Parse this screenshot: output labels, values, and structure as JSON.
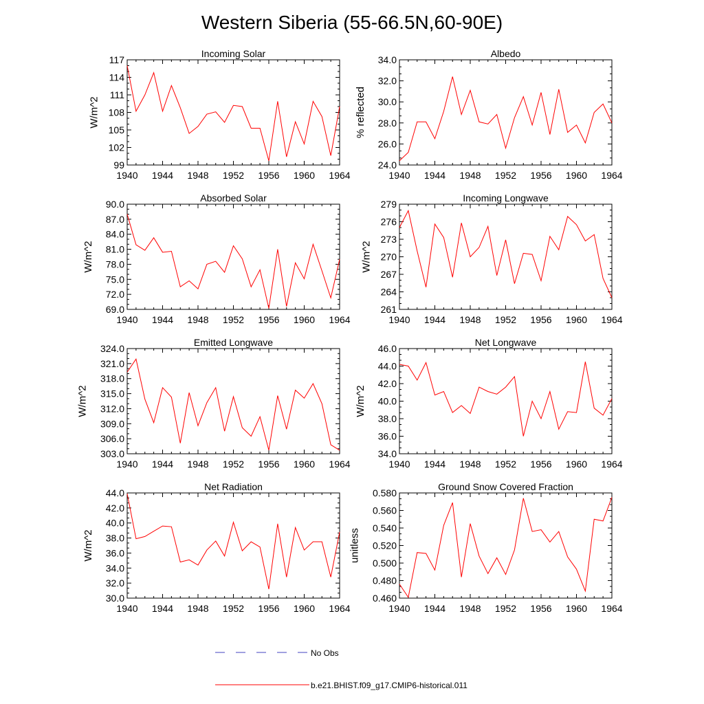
{
  "figure": {
    "title": "Western Siberia (55-66.5N,60-90E)"
  },
  "legend": [
    {
      "label": "No Obs",
      "color": "#4040c0",
      "style": "dashed"
    },
    {
      "label": "b.e21.BHIST.f09_g17.CMIP6-historical.011",
      "color": "#ff0000",
      "style": "solid"
    }
  ],
  "chart_data": [
    {
      "type": "line",
      "title": "Incoming Solar",
      "ylabel": "W/m^2",
      "xlim": [
        1940,
        1964
      ],
      "ylim": [
        99,
        117
      ],
      "xticks": [
        "1940",
        "1944",
        "1948",
        "1952",
        "1956",
        "1960",
        "1964"
      ],
      "yticks": [
        "99",
        "102",
        "105",
        "108",
        "111",
        "114",
        "117"
      ],
      "series": [
        {
          "color": "#ff0000",
          "x": [
            1940,
            1941,
            1942,
            1943,
            1944,
            1945,
            1946,
            1947,
            1948,
            1949,
            1950,
            1951,
            1952,
            1953,
            1954,
            1955,
            1956,
            1957,
            1958,
            1959,
            1960,
            1961,
            1962,
            1963,
            1964
          ],
          "y": [
            116.0,
            108.2,
            111.0,
            114.8,
            108.2,
            112.6,
            108.8,
            104.4,
            105.6,
            107.7,
            108.1,
            106.3,
            109.2,
            109.0,
            105.3,
            105.3,
            99.7,
            109.9,
            100.4,
            106.4,
            102.6,
            109.9,
            107.3,
            100.6,
            109.0
          ]
        }
      ]
    },
    {
      "type": "line",
      "title": "Albedo",
      "ylabel": "% reflected",
      "xlim": [
        1940,
        1964
      ],
      "ylim": [
        24.0,
        34.0
      ],
      "xticks": [
        "1940",
        "1944",
        "1948",
        "1952",
        "1956",
        "1960",
        "1964"
      ],
      "yticks": [
        "24.0",
        "26.0",
        "28.0",
        "30.0",
        "32.0",
        "34.0"
      ],
      "series": [
        {
          "color": "#ff0000",
          "x": [
            1940,
            1941,
            1942,
            1943,
            1944,
            1945,
            1946,
            1947,
            1948,
            1949,
            1950,
            1951,
            1952,
            1953,
            1954,
            1955,
            1956,
            1957,
            1958,
            1959,
            1960,
            1961,
            1962,
            1963,
            1964
          ],
          "y": [
            24.4,
            25.2,
            28.1,
            28.1,
            26.5,
            29.1,
            32.4,
            28.8,
            31.1,
            28.1,
            27.9,
            28.8,
            25.6,
            28.5,
            30.5,
            27.8,
            30.9,
            26.9,
            31.2,
            27.1,
            27.8,
            26.1,
            29.0,
            29.8,
            28.0
          ]
        }
      ]
    },
    {
      "type": "line",
      "title": "Absorbed Solar",
      "ylabel": "W/m^2",
      "xlim": [
        1940,
        1964
      ],
      "ylim": [
        69.0,
        90.0
      ],
      "xticks": [
        "1940",
        "1944",
        "1948",
        "1952",
        "1956",
        "1960",
        "1964"
      ],
      "yticks": [
        "69.0",
        "72.0",
        "75.0",
        "78.0",
        "81.0",
        "84.0",
        "87.0",
        "90.0"
      ],
      "series": [
        {
          "color": "#ff0000",
          "x": [
            1940,
            1941,
            1942,
            1943,
            1944,
            1945,
            1946,
            1947,
            1948,
            1949,
            1950,
            1951,
            1952,
            1953,
            1954,
            1955,
            1956,
            1957,
            1958,
            1959,
            1960,
            1961,
            1962,
            1963,
            1964
          ],
          "y": [
            88.0,
            81.9,
            80.8,
            83.3,
            80.4,
            80.6,
            73.5,
            74.7,
            73.1,
            78.0,
            78.6,
            76.4,
            81.7,
            79.1,
            73.5,
            76.9,
            69.2,
            81.0,
            69.6,
            78.3,
            75.1,
            82.0,
            76.7,
            71.3,
            79.0
          ]
        }
      ]
    },
    {
      "type": "line",
      "title": "Incoming Longwave",
      "ylabel": "W/m^2",
      "xlim": [
        1940,
        1964
      ],
      "ylim": [
        261,
        279
      ],
      "xticks": [
        "1940",
        "1944",
        "1948",
        "1952",
        "1956",
        "1960",
        "1964"
      ],
      "yticks": [
        "261",
        "264",
        "267",
        "270",
        "273",
        "276",
        "279"
      ],
      "series": [
        {
          "color": "#ff0000",
          "x": [
            1940,
            1941,
            1942,
            1943,
            1944,
            1945,
            1946,
            1947,
            1948,
            1949,
            1950,
            1951,
            1952,
            1953,
            1954,
            1955,
            1956,
            1957,
            1958,
            1959,
            1960,
            1961,
            1962,
            1963,
            1964
          ],
          "y": [
            275.0,
            277.9,
            271.0,
            264.8,
            275.6,
            273.3,
            266.5,
            275.8,
            270.0,
            271.6,
            275.2,
            266.8,
            272.9,
            265.4,
            270.6,
            270.4,
            265.9,
            273.5,
            271.2,
            276.9,
            275.5,
            272.7,
            273.8,
            266.3,
            263.0
          ]
        }
      ]
    },
    {
      "type": "line",
      "title": "Emitted Longwave",
      "ylabel": "W/m^2",
      "xlim": [
        1940,
        1964
      ],
      "ylim": [
        303.0,
        324.0
      ],
      "xticks": [
        "1940",
        "1944",
        "1948",
        "1952",
        "1956",
        "1960",
        "1964"
      ],
      "yticks": [
        "303.0",
        "306.0",
        "309.0",
        "312.0",
        "315.0",
        "318.0",
        "321.0",
        "324.0"
      ],
      "series": [
        {
          "color": "#ff0000",
          "x": [
            1940,
            1941,
            1942,
            1943,
            1944,
            1945,
            1946,
            1947,
            1948,
            1949,
            1950,
            1951,
            1952,
            1953,
            1954,
            1955,
            1956,
            1957,
            1958,
            1959,
            1960,
            1961,
            1962,
            1963,
            1964
          ],
          "y": [
            319.3,
            321.9,
            313.9,
            309.2,
            316.2,
            314.3,
            305.1,
            315.2,
            308.6,
            313.2,
            316.2,
            307.5,
            314.4,
            308.2,
            306.5,
            310.4,
            303.7,
            314.6,
            307.9,
            315.7,
            314.1,
            317.0,
            313.0,
            304.8,
            303.7
          ]
        }
      ]
    },
    {
      "type": "line",
      "title": "Net Longwave",
      "ylabel": "W/m^2",
      "xlim": [
        1940,
        1964
      ],
      "ylim": [
        34.0,
        46.0
      ],
      "xticks": [
        "1940",
        "1944",
        "1948",
        "1952",
        "1956",
        "1960",
        "1964"
      ],
      "yticks": [
        "34.0",
        "36.0",
        "38.0",
        "40.0",
        "42.0",
        "44.0",
        "46.0"
      ],
      "series": [
        {
          "color": "#ff0000",
          "x": [
            1940,
            1941,
            1942,
            1943,
            1944,
            1945,
            1946,
            1947,
            1948,
            1949,
            1950,
            1951,
            1952,
            1953,
            1954,
            1955,
            1956,
            1957,
            1958,
            1959,
            1960,
            1961,
            1962,
            1963,
            1964
          ],
          "y": [
            44.2,
            44.0,
            42.4,
            44.4,
            40.7,
            41.1,
            38.7,
            39.5,
            38.6,
            41.6,
            41.1,
            40.8,
            41.6,
            42.8,
            36.0,
            40.0,
            38.0,
            41.1,
            36.8,
            38.8,
            38.7,
            44.5,
            39.2,
            38.4,
            40.3
          ]
        }
      ]
    },
    {
      "type": "line",
      "title": "Net Radiation",
      "ylabel": "W/m^2",
      "xlim": [
        1940,
        1964
      ],
      "ylim": [
        30.0,
        44.0
      ],
      "xticks": [
        "1940",
        "1944",
        "1948",
        "1952",
        "1956",
        "1960",
        "1964"
      ],
      "yticks": [
        "30.0",
        "32.0",
        "34.0",
        "36.0",
        "38.0",
        "40.0",
        "42.0",
        "44.0"
      ],
      "series": [
        {
          "color": "#ff0000",
          "x": [
            1940,
            1941,
            1942,
            1943,
            1944,
            1945,
            1946,
            1947,
            1948,
            1949,
            1950,
            1951,
            1952,
            1953,
            1954,
            1955,
            1956,
            1957,
            1958,
            1959,
            1960,
            1961,
            1962,
            1963,
            1964
          ],
          "y": [
            43.9,
            37.9,
            38.2,
            38.9,
            39.6,
            39.5,
            34.8,
            35.1,
            34.4,
            36.4,
            37.6,
            35.6,
            40.1,
            36.3,
            37.5,
            36.8,
            31.2,
            39.9,
            32.8,
            39.4,
            36.4,
            37.5,
            37.5,
            32.8,
            38.8
          ]
        }
      ]
    },
    {
      "type": "line",
      "title": "Ground Snow Covered Fraction",
      "ylabel": "unitless",
      "xlim": [
        1940,
        1964
      ],
      "ylim": [
        0.46,
        0.58
      ],
      "xticks": [
        "1940",
        "1944",
        "1948",
        "1952",
        "1956",
        "1960",
        "1964"
      ],
      "yticks": [
        "0.460",
        "0.480",
        "0.500",
        "0.520",
        "0.540",
        "0.560",
        "0.580"
      ],
      "series": [
        {
          "color": "#ff0000",
          "x": [
            1940,
            1941,
            1942,
            1943,
            1944,
            1945,
            1946,
            1947,
            1948,
            1949,
            1950,
            1951,
            1952,
            1953,
            1954,
            1955,
            1956,
            1957,
            1958,
            1959,
            1960,
            1961,
            1962,
            1963,
            1964
          ],
          "y": [
            0.476,
            0.461,
            0.512,
            0.511,
            0.492,
            0.543,
            0.569,
            0.484,
            0.545,
            0.508,
            0.488,
            0.506,
            0.487,
            0.515,
            0.574,
            0.536,
            0.538,
            0.524,
            0.536,
            0.507,
            0.493,
            0.468,
            0.55,
            0.548,
            0.575
          ]
        }
      ]
    }
  ]
}
